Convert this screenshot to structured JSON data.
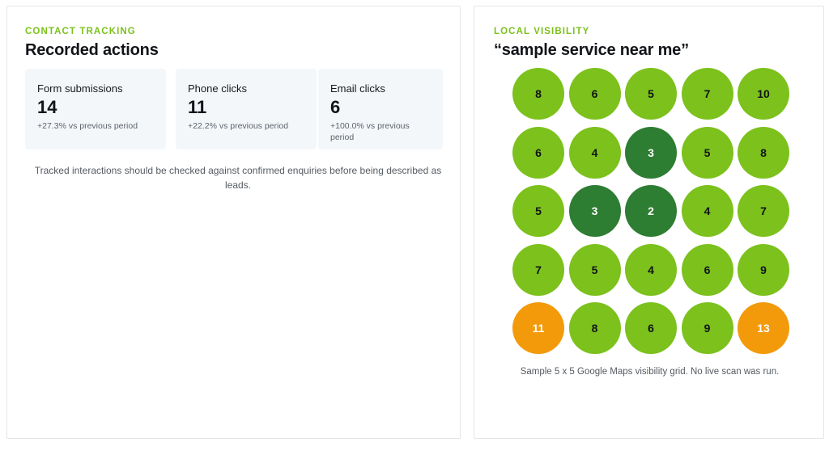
{
  "contact_tracking": {
    "eyebrow": "CONTACT TRACKING",
    "title": "Recorded actions",
    "cards": [
      {
        "label": "Form submissions",
        "value": "14",
        "change": "+27.3% vs previous period"
      },
      {
        "label": "Phone clicks",
        "value": "11",
        "change": "+22.2% vs previous period"
      },
      {
        "label": "Email clicks",
        "value": "6",
        "change": "+100.0% vs previous period"
      }
    ],
    "note": "Tracked interactions should be checked against confirmed enquiries before being described as leads."
  },
  "local_visibility": {
    "eyebrow": "LOCAL VISIBILITY",
    "title": "“sample service near me”",
    "grid_size": 5,
    "ranks": [
      [
        8,
        6,
        5,
        7,
        10
      ],
      [
        6,
        4,
        3,
        5,
        8
      ],
      [
        5,
        3,
        2,
        4,
        7
      ],
      [
        7,
        5,
        4,
        6,
        9
      ],
      [
        11,
        8,
        6,
        9,
        13
      ]
    ],
    "colors": {
      "top": "#2d7d32",
      "good": "#7cc11c",
      "weak": "#f39a0b"
    },
    "caption": "Sample 5 x 5 Google Maps visibility grid. No live scan was run."
  }
}
